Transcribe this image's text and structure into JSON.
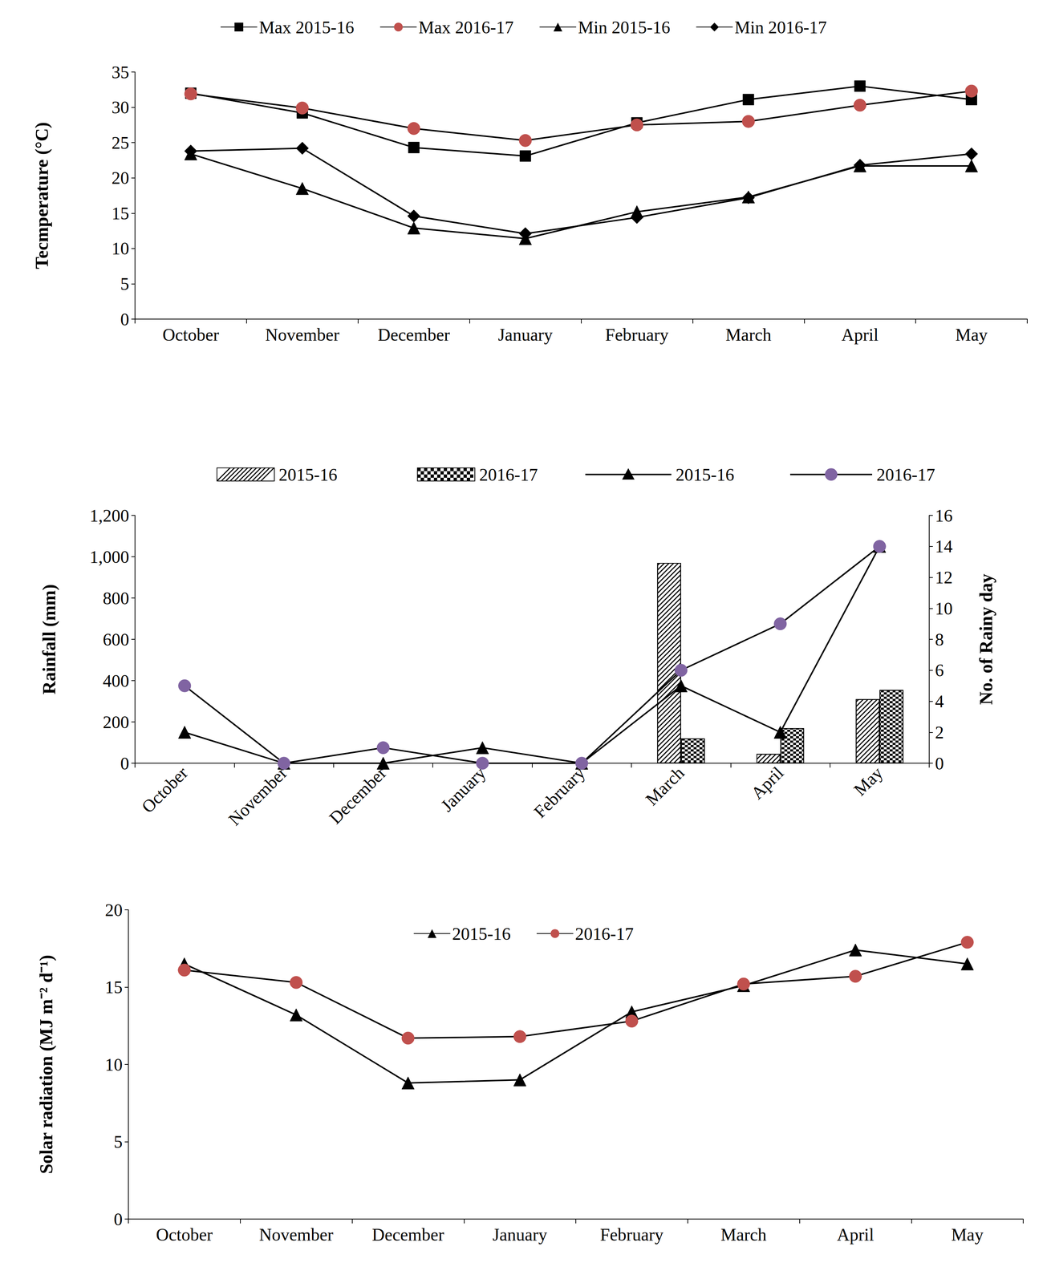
{
  "chart_data": [
    {
      "type": "line",
      "y_label": "Tecmperature (°C)",
      "categories": [
        "October",
        "November",
        "December",
        "January",
        "February",
        "March",
        "April",
        "May"
      ],
      "series": [
        {
          "name": "Max 2015-16",
          "color": "#000000",
          "marker": "square",
          "values": [
            32,
            29.2,
            24.3,
            23.1,
            27.8,
            31.1,
            33,
            31.1
          ]
        },
        {
          "name": "Max 2016-17",
          "color": "#c0504d",
          "marker": "circle",
          "values": [
            31.9,
            29.9,
            27,
            25.3,
            27.5,
            28,
            30.3,
            32.3
          ]
        },
        {
          "name": "Min 2015-16",
          "color": "#000000",
          "marker": "triangle",
          "values": [
            23.4,
            18.5,
            12.9,
            11.4,
            15.2,
            17.3,
            21.7,
            21.7
          ]
        },
        {
          "name": "Min 2016-17",
          "color": "#000000",
          "marker": "diamond",
          "values": [
            23.8,
            24.2,
            14.6,
            12.1,
            14.4,
            17.2,
            21.8,
            23.4
          ]
        }
      ],
      "ylim": [
        0,
        35
      ],
      "yticks": [
        0,
        5,
        10,
        15,
        20,
        25,
        30,
        35
      ],
      "grid": false,
      "legend": "top"
    },
    {
      "type": "bar",
      "y_label": "Rainfall (mm)",
      "y2_label": "No. of Rainy day",
      "categories": [
        "October",
        "November",
        "December",
        "January",
        "February",
        "March",
        "April",
        "May"
      ],
      "series": [
        {
          "name": "2015-16",
          "type": "bar",
          "color": "#000000",
          "marker": "diagonal_hatch",
          "values": [
            0,
            0,
            0,
            0,
            0,
            970,
            45,
            310
          ]
        },
        {
          "name": "2016-17",
          "type": "bar",
          "color": "#000000",
          "marker": "checker",
          "values": [
            0,
            0,
            0,
            0,
            0,
            120,
            170,
            355
          ]
        },
        {
          "name": "2015-16",
          "type": "line",
          "axis": "y2",
          "color": "#000000",
          "marker": "triangle",
          "values": [
            2,
            0,
            0,
            1,
            0,
            5,
            2,
            14
          ]
        },
        {
          "name": "2016-17",
          "type": "line",
          "axis": "y2",
          "color": "#8064a2",
          "marker": "circle",
          "values": [
            5,
            0,
            1,
            0,
            0,
            6,
            9,
            14
          ]
        }
      ],
      "ylim": [
        0,
        1200
      ],
      "yticks": [
        0,
        200,
        400,
        600,
        800,
        1000,
        1200
      ],
      "y2lim": [
        0,
        16
      ],
      "y2ticks": [
        0,
        2,
        4,
        6,
        8,
        10,
        12,
        14,
        16
      ],
      "grid": false,
      "legend": "top"
    },
    {
      "type": "line",
      "y_label": "Solar radiation (MJ m⁻² d⁻¹)",
      "categories": [
        "October",
        "November",
        "December",
        "January",
        "February",
        "March",
        "April",
        "May"
      ],
      "series": [
        {
          "name": "2015-16",
          "color": "#000000",
          "marker": "triangle",
          "values": [
            16.5,
            13.2,
            8.8,
            9.0,
            13.4,
            15.1,
            17.4,
            16.5
          ]
        },
        {
          "name": "2016-17",
          "color": "#c0504d",
          "marker": "circle",
          "values": [
            16.1,
            15.3,
            11.7,
            11.8,
            12.8,
            15.2,
            15.7,
            17.9
          ]
        }
      ],
      "ylim": [
        0,
        20
      ],
      "yticks": [
        0,
        5,
        10,
        15,
        20
      ],
      "grid": false,
      "legend": "top"
    }
  ]
}
